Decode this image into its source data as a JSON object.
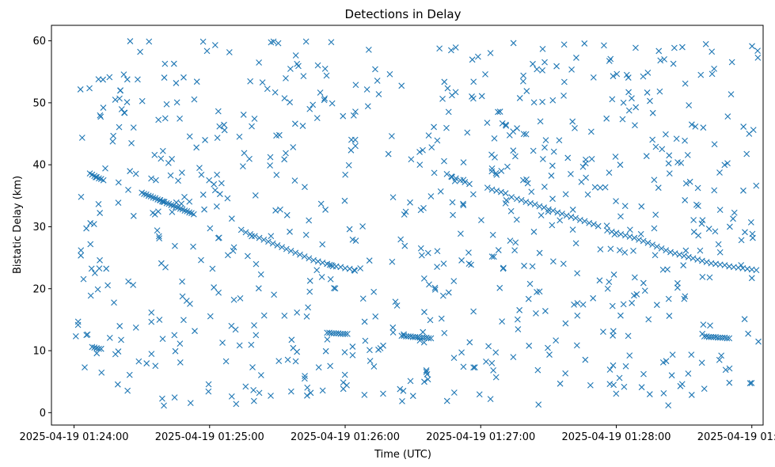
{
  "chart_data": {
    "type": "scatter",
    "title": "Detections in Delay",
    "xlabel": "Time (UTC)",
    "ylabel": "Bistatic Delay (km)",
    "marker": "x",
    "color": "#1f77b4",
    "x_start": "2025-04-19 01:24:00",
    "x_units": "seconds since x_start",
    "xlim": [
      -10,
      305
    ],
    "ylim": [
      -2,
      62.5
    ],
    "x_ticks": [
      {
        "value": 0,
        "label": "2025-04-19 01:24:00"
      },
      {
        "value": 60,
        "label": "2025-04-19 01:25:00"
      },
      {
        "value": 120,
        "label": "2025-04-19 01:26:00"
      },
      {
        "value": 180,
        "label": "2025-04-19 01:27:00"
      },
      {
        "value": 240,
        "label": "2025-04-19 01:28:00"
      },
      {
        "value": 300,
        "label": "2025-04-19 01:29:00"
      }
    ],
    "y_ticks": [
      {
        "value": 0,
        "label": "0"
      },
      {
        "value": 10,
        "label": "10"
      },
      {
        "value": 20,
        "label": "20"
      },
      {
        "value": 30,
        "label": "30"
      },
      {
        "value": 40,
        "label": "40"
      },
      {
        "value": 50,
        "label": "50"
      },
      {
        "value": 60,
        "label": "60"
      }
    ],
    "track_points": [
      [
        7,
        38.6
      ],
      [
        8,
        38.4
      ],
      [
        9,
        38.2
      ],
      [
        10,
        38.0
      ],
      [
        11,
        37.8
      ],
      [
        12,
        37.7
      ],
      [
        13,
        37.5
      ],
      [
        30,
        35.5
      ],
      [
        31,
        35.3
      ],
      [
        32,
        35.2
      ],
      [
        33,
        35.0
      ],
      [
        34,
        34.9
      ],
      [
        35,
        34.7
      ],
      [
        36,
        34.6
      ],
      [
        37,
        34.4
      ],
      [
        38,
        34.3
      ],
      [
        39,
        34.1
      ],
      [
        40,
        34.0
      ],
      [
        41,
        33.8
      ],
      [
        42,
        33.7
      ],
      [
        43,
        33.5
      ],
      [
        44,
        33.4
      ],
      [
        45,
        33.2
      ],
      [
        46,
        33.1
      ],
      [
        47,
        32.9
      ],
      [
        48,
        32.8
      ],
      [
        49,
        32.6
      ],
      [
        50,
        32.5
      ],
      [
        51,
        32.3
      ],
      [
        52,
        32.2
      ],
      [
        53,
        32.0
      ],
      [
        74,
        29.5
      ],
      [
        76,
        29.1
      ],
      [
        78,
        28.8
      ],
      [
        80,
        28.5
      ],
      [
        82,
        28.2
      ],
      [
        84,
        27.9
      ],
      [
        86,
        27.6
      ],
      [
        88,
        27.3
      ],
      [
        90,
        27.0
      ],
      [
        92,
        26.7
      ],
      [
        94,
        26.4
      ],
      [
        96,
        26.1
      ],
      [
        98,
        25.8
      ],
      [
        100,
        25.5
      ],
      [
        102,
        25.2
      ],
      [
        104,
        24.9
      ],
      [
        106,
        24.6
      ],
      [
        108,
        24.4
      ],
      [
        110,
        24.2
      ],
      [
        112,
        24.0
      ],
      [
        114,
        23.8
      ],
      [
        116,
        23.6
      ],
      [
        118,
        23.5
      ],
      [
        120,
        23.3
      ],
      [
        122,
        23.2
      ],
      [
        124,
        23.0
      ],
      [
        165,
        38.5
      ],
      [
        167,
        38.1
      ],
      [
        169,
        37.8
      ],
      [
        171,
        37.5
      ],
      [
        173,
        37.2
      ],
      [
        175,
        36.9
      ],
      [
        183,
        36.3
      ],
      [
        185,
        36.0
      ],
      [
        187,
        35.8
      ],
      [
        189,
        35.6
      ],
      [
        191,
        35.4
      ],
      [
        196,
        34.5
      ],
      [
        198,
        34.3
      ],
      [
        200,
        34.0
      ],
      [
        202,
        33.8
      ],
      [
        204,
        33.6
      ],
      [
        206,
        33.3
      ],
      [
        208,
        33.1
      ],
      [
        210,
        32.8
      ],
      [
        212,
        32.6
      ],
      [
        214,
        32.3
      ],
      [
        216,
        32.1
      ],
      [
        218,
        31.8
      ],
      [
        220,
        31.6
      ],
      [
        222,
        31.4
      ],
      [
        224,
        31.1
      ],
      [
        226,
        30.9
      ],
      [
        228,
        30.6
      ],
      [
        230,
        30.4
      ],
      [
        232,
        30.1
      ],
      [
        236,
        29.4
      ],
      [
        238,
        29.2
      ],
      [
        240,
        29.0
      ],
      [
        242,
        28.8
      ],
      [
        244,
        28.6
      ],
      [
        246,
        28.4
      ],
      [
        248,
        28.2
      ],
      [
        250,
        27.9
      ],
      [
        252,
        27.7
      ],
      [
        254,
        27.4
      ],
      [
        256,
        27.1
      ],
      [
        258,
        26.8
      ],
      [
        260,
        26.5
      ],
      [
        262,
        26.2
      ],
      [
        264,
        25.9
      ],
      [
        266,
        25.7
      ],
      [
        268,
        25.5
      ],
      [
        270,
        25.3
      ],
      [
        272,
        25.1
      ],
      [
        274,
        24.9
      ],
      [
        276,
        24.7
      ],
      [
        278,
        24.5
      ],
      [
        280,
        24.3
      ],
      [
        282,
        24.1
      ],
      [
        284,
        24.0
      ],
      [
        286,
        23.9
      ],
      [
        288,
        23.8
      ],
      [
        290,
        23.6
      ],
      [
        292,
        23.5
      ],
      [
        294,
        23.4
      ],
      [
        296,
        23.3
      ],
      [
        298,
        23.2
      ],
      [
        300,
        23.1
      ],
      [
        302,
        23.0
      ],
      [
        8,
        10.6
      ],
      [
        9,
        10.5
      ],
      [
        10,
        10.4
      ],
      [
        11,
        10.3
      ],
      [
        12,
        10.3
      ],
      [
        112,
        12.9
      ],
      [
        113,
        12.9
      ],
      [
        114,
        12.8
      ],
      [
        115,
        12.8
      ],
      [
        116,
        12.8
      ],
      [
        117,
        12.8
      ],
      [
        118,
        12.7
      ],
      [
        119,
        12.7
      ],
      [
        120,
        12.7
      ],
      [
        121,
        12.7
      ],
      [
        145,
        12.4
      ],
      [
        146,
        12.4
      ],
      [
        147,
        12.3
      ],
      [
        148,
        12.3
      ],
      [
        149,
        12.3
      ],
      [
        150,
        12.2
      ],
      [
        151,
        12.2
      ],
      [
        152,
        12.2
      ],
      [
        153,
        12.1
      ],
      [
        154,
        12.1
      ],
      [
        155,
        12.1
      ],
      [
        156,
        12.1
      ],
      [
        157,
        12.0
      ],
      [
        158,
        12.0
      ],
      [
        279,
        12.3
      ],
      [
        280,
        12.3
      ],
      [
        281,
        12.2
      ],
      [
        282,
        12.2
      ],
      [
        283,
        12.2
      ],
      [
        284,
        12.2
      ],
      [
        285,
        12.1
      ],
      [
        286,
        12.1
      ],
      [
        287,
        12.1
      ],
      [
        288,
        12.1
      ],
      [
        289,
        12.0
      ],
      [
        290,
        12.0
      ]
    ],
    "clutter": {
      "count": 760,
      "x_range": [
        0,
        303
      ],
      "y_range": [
        1,
        60
      ],
      "description": "uniformly scattered false-alarm detections across the full window"
    }
  }
}
